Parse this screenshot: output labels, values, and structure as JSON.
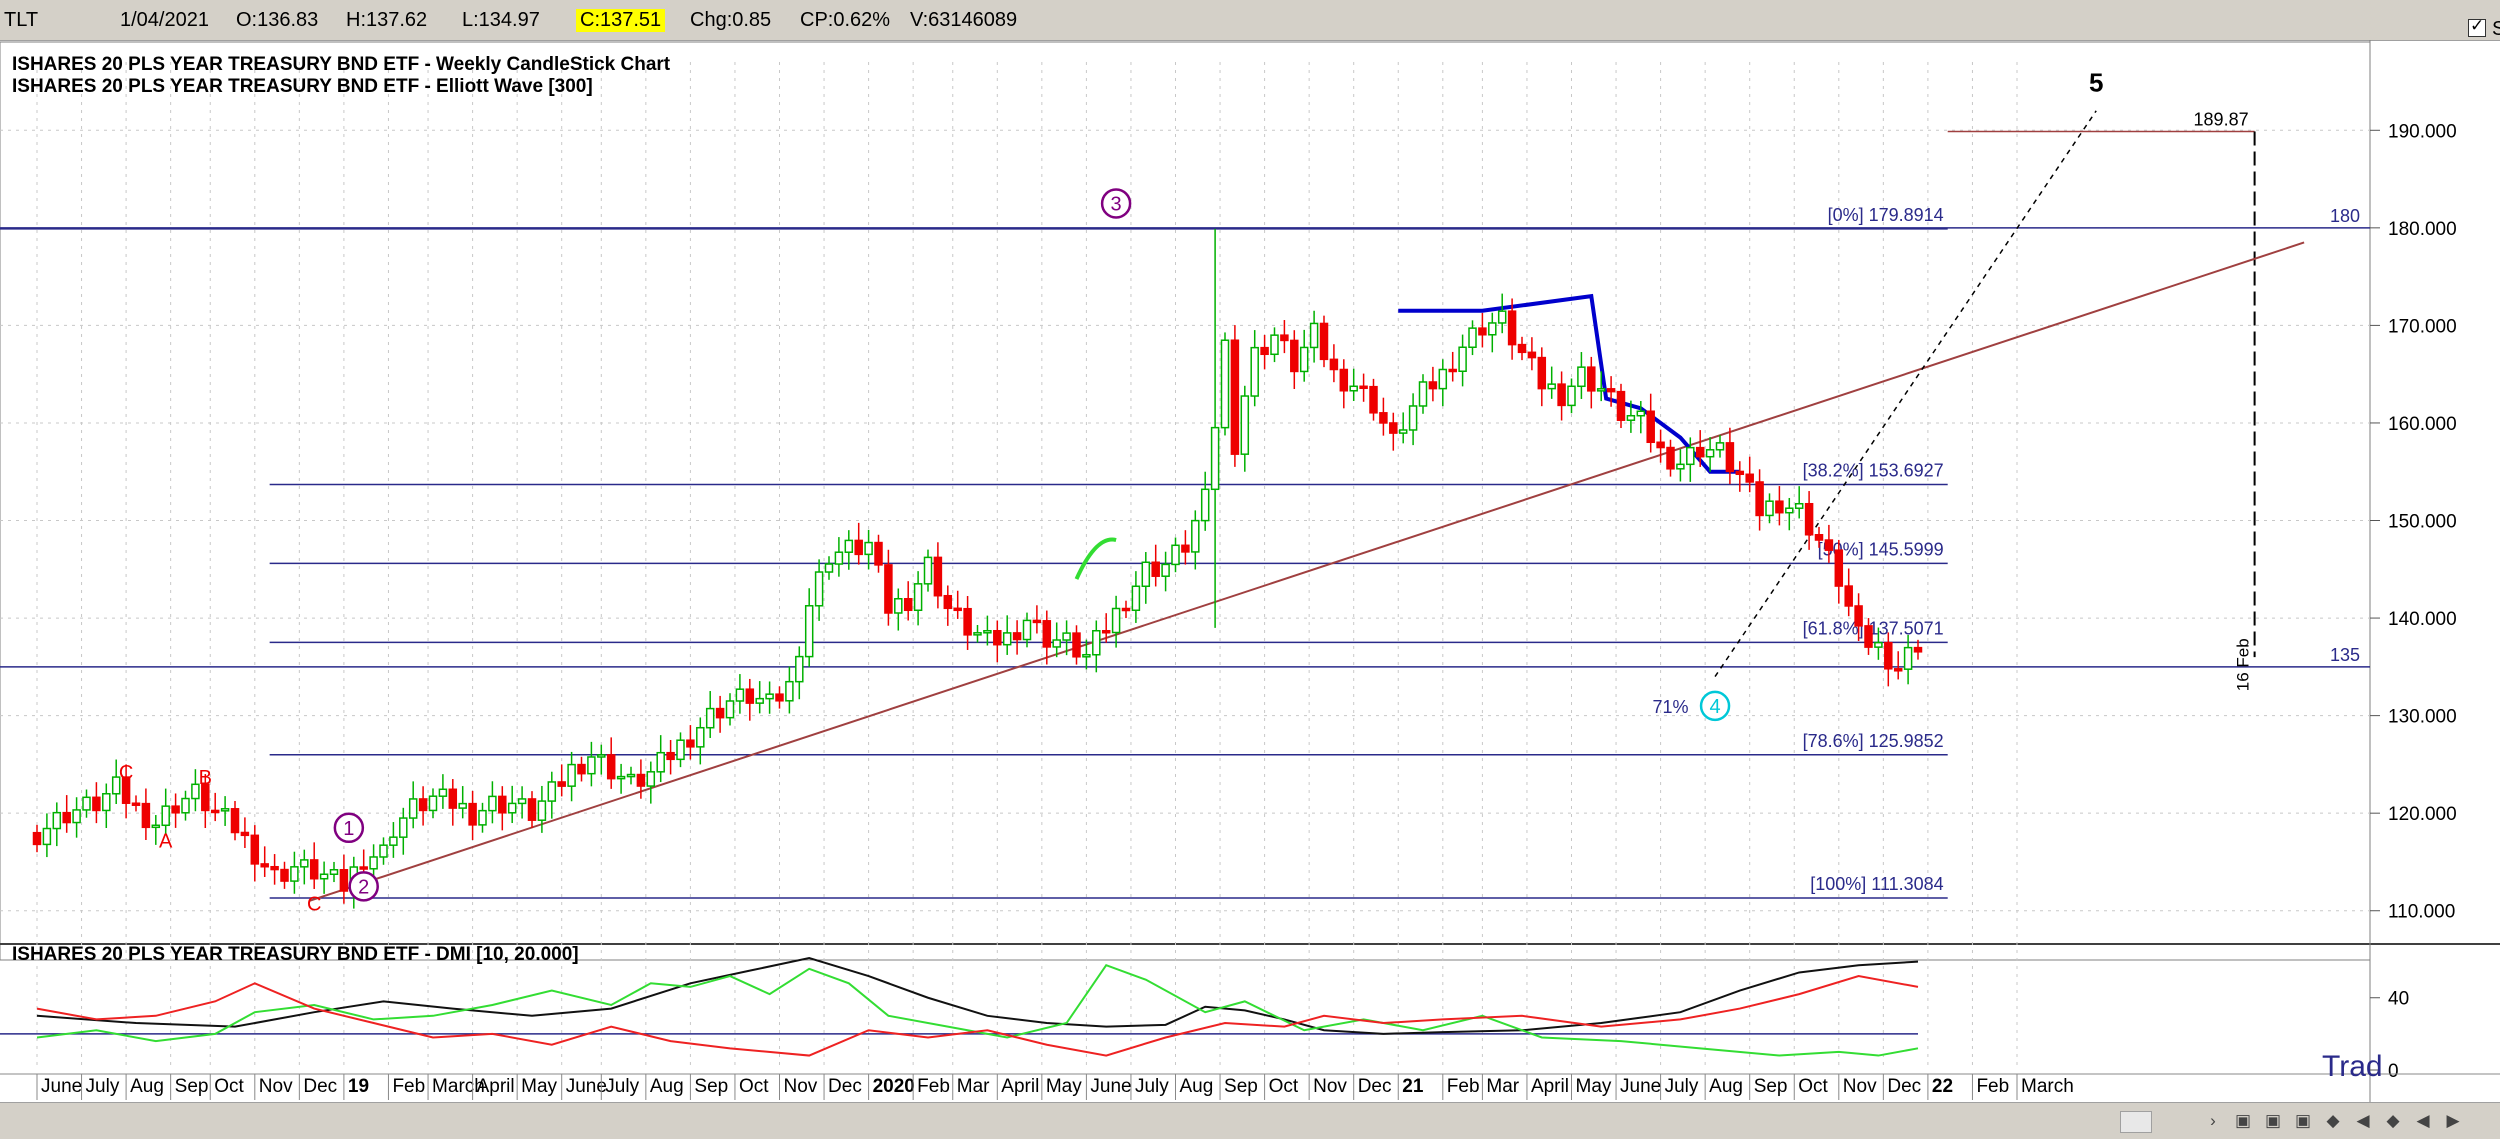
{
  "infobar": {
    "symbol": "TLT",
    "date": "1/04/2021",
    "open": "O:136.83",
    "high": "H:137.62",
    "low": "L:134.97",
    "close": "C:137.51",
    "change": "Chg:0.85",
    "change_pct": "CP:0.62%",
    "volume": "V:63146089",
    "show_last_label": "Show Last",
    "show_last_checked": true
  },
  "colors": {
    "bull": "#00b000",
    "bear": "#ee0000",
    "fib_line": "#2a2a8a",
    "trendline": "#a04040",
    "projection": "#0000cc",
    "wave_purple": "#800080",
    "wave_cyan": "#00c8d8",
    "dmi_plus": "#33dd33",
    "dmi_minus": "#ee2222",
    "adx": "#111111",
    "watermark": "#2a2a8a"
  },
  "watermark": "Trad",
  "chart_data": [
    {
      "type": "candlestick",
      "title": "ISHARES 20 PLS YEAR TREASURY BND ETF - Weekly CandleStick Chart",
      "subtitle": "ISHARES 20 PLS YEAR TREASURY BND ETF - Elliott Wave [300]",
      "ylim": [
        107,
        197
      ],
      "yticks": [
        110,
        120,
        130,
        140,
        150,
        160,
        170,
        180,
        190
      ],
      "ytick_labels": [
        "110.000",
        "120.000",
        "130.000",
        "140.000",
        "150.000",
        "160.000",
        "170.000",
        "180.000",
        "190.000"
      ],
      "grid": true,
      "x_range_weeks": [
        0,
        245
      ],
      "x_labels": [
        {
          "w": 0,
          "label": "June"
        },
        {
          "w": 4.5,
          "label": "July"
        },
        {
          "w": 9,
          "label": "Aug"
        },
        {
          "w": 13.5,
          "label": "Sep"
        },
        {
          "w": 17.5,
          "label": "Oct"
        },
        {
          "w": 22,
          "label": "Nov"
        },
        {
          "w": 26.5,
          "label": "Dec"
        },
        {
          "w": 31,
          "label": "19"
        },
        {
          "w": 35.5,
          "label": "Feb"
        },
        {
          "w": 39.5,
          "label": "March"
        },
        {
          "w": 44,
          "label": "April"
        },
        {
          "w": 48.5,
          "label": "May"
        },
        {
          "w": 53,
          "label": "June"
        },
        {
          "w": 57,
          "label": "July"
        },
        {
          "w": 61.5,
          "label": "Aug"
        },
        {
          "w": 66,
          "label": "Sep"
        },
        {
          "w": 70.5,
          "label": "Oct"
        },
        {
          "w": 75,
          "label": "Nov"
        },
        {
          "w": 79.5,
          "label": "Dec"
        },
        {
          "w": 84,
          "label": "2020"
        },
        {
          "w": 88.5,
          "label": "Feb"
        },
        {
          "w": 92.5,
          "label": "Mar"
        },
        {
          "w": 97,
          "label": "April"
        },
        {
          "w": 101.5,
          "label": "May"
        },
        {
          "w": 106,
          "label": "June"
        },
        {
          "w": 110.5,
          "label": "July"
        },
        {
          "w": 115,
          "label": "Aug"
        },
        {
          "w": 119.5,
          "label": "Sep"
        },
        {
          "w": 124,
          "label": "Oct"
        },
        {
          "w": 128.5,
          "label": "Nov"
        },
        {
          "w": 133,
          "label": "Dec"
        },
        {
          "w": 137.5,
          "label": "21"
        },
        {
          "w": 142,
          "label": "Feb"
        },
        {
          "w": 146,
          "label": "Mar"
        },
        {
          "w": 150.5,
          "label": "April"
        },
        {
          "w": 155,
          "label": "May"
        },
        {
          "w": 159.5,
          "label": "June"
        },
        {
          "w": 164,
          "label": "July"
        },
        {
          "w": 168.5,
          "label": "Aug"
        },
        {
          "w": 173,
          "label": "Sep"
        },
        {
          "w": 177.5,
          "label": "Oct"
        },
        {
          "w": 182,
          "label": "Nov"
        },
        {
          "w": 186.5,
          "label": "Dec"
        },
        {
          "w": 191,
          "label": "22"
        },
        {
          "w": 195.5,
          "label": "Feb"
        },
        {
          "w": 200,
          "label": "March"
        }
      ],
      "close_path": [
        [
          0,
          118
        ],
        [
          3,
          120
        ],
        [
          6,
          121
        ],
        [
          8,
          122.5
        ],
        [
          10,
          120.5
        ],
        [
          12,
          119
        ],
        [
          14,
          121
        ],
        [
          16,
          122
        ],
        [
          18,
          120
        ],
        [
          20,
          118.5
        ],
        [
          22,
          116
        ],
        [
          24,
          113.5
        ],
        [
          26,
          114.5
        ],
        [
          28,
          114
        ],
        [
          30,
          113
        ],
        [
          31,
          112.5
        ],
        [
          32,
          114
        ],
        [
          33,
          115.5
        ],
        [
          35,
          116
        ],
        [
          36,
          118.5
        ],
        [
          38,
          120.5
        ],
        [
          40,
          121.5
        ],
        [
          42,
          121
        ],
        [
          44,
          120
        ],
        [
          46,
          121
        ],
        [
          48,
          121
        ],
        [
          50,
          120
        ],
        [
          52,
          122
        ],
        [
          54,
          124.5
        ],
        [
          56,
          126
        ],
        [
          58,
          124.5
        ],
        [
          60,
          123
        ],
        [
          62,
          124
        ],
        [
          64,
          126
        ],
        [
          66,
          128
        ],
        [
          68,
          130
        ],
        [
          70,
          131.5
        ],
        [
          72,
          132
        ],
        [
          74,
          131
        ],
        [
          76,
          133
        ],
        [
          78,
          141.5
        ],
        [
          80,
          146.5
        ],
        [
          82,
          147
        ],
        [
          84,
          147.5
        ],
        [
          86,
          141
        ],
        [
          88,
          142
        ],
        [
          90,
          145.5
        ],
        [
          92,
          141
        ],
        [
          94,
          139
        ],
        [
          96,
          137.5
        ],
        [
          98,
          138
        ],
        [
          100,
          140
        ],
        [
          102,
          138
        ],
        [
          104,
          137.5
        ],
        [
          106,
          136
        ],
        [
          108,
          139
        ],
        [
          110,
          142
        ],
        [
          112,
          145
        ],
        [
          114,
          145.5
        ],
        [
          116,
          147.5
        ],
        [
          118,
          152
        ],
        [
          120,
          168
        ],
        [
          121,
          158
        ],
        [
          122,
          163
        ],
        [
          123,
          167
        ],
        [
          125,
          169
        ],
        [
          127,
          166
        ],
        [
          129,
          169
        ],
        [
          131,
          165
        ],
        [
          133,
          164
        ],
        [
          135,
          162
        ],
        [
          137,
          158
        ],
        [
          138,
          160
        ],
        [
          140,
          163
        ],
        [
          142,
          165
        ],
        [
          144,
          168
        ],
        [
          146,
          170
        ],
        [
          148,
          170.5
        ],
        [
          150,
          167
        ],
        [
          152,
          164
        ],
        [
          154,
          163
        ],
        [
          156,
          165
        ],
        [
          158,
          163.5
        ],
        [
          160,
          161
        ],
        [
          162,
          160
        ],
        [
          164,
          157
        ],
        [
          166,
          156
        ],
        [
          168,
          157.5
        ],
        [
          170,
          157
        ],
        [
          172,
          154.5
        ],
        [
          174,
          151
        ],
        [
          176,
          152
        ],
        [
          178,
          151
        ],
        [
          180,
          148
        ],
        [
          182,
          144
        ],
        [
          184,
          138
        ],
        [
          186,
          137
        ],
        [
          188,
          135
        ],
        [
          190,
          137.5
        ]
      ],
      "fib_levels": [
        {
          "label": "[0%] 179.8914",
          "value": 179.8914,
          "full_width": true
        },
        {
          "label": "[38.2%] 153.6927",
          "value": 153.6927
        },
        {
          "label": "[50%] 145.5999",
          "value": 145.5999
        },
        {
          "label": "[61.8%] 137.5071",
          "value": 137.5071
        },
        {
          "label": "[78.6%] 125.9852",
          "value": 125.9852
        },
        {
          "label": "[100%] 111.3084",
          "value": 111.3084
        }
      ],
      "horizontal_lines": [
        {
          "label": "180",
          "value": 180
        },
        {
          "label": "135",
          "value": 135
        }
      ],
      "target": {
        "label": "189.87",
        "value": 189.87,
        "w_start": 193,
        "w_end": 224
      },
      "vertical_marker": {
        "label": "16 Feb",
        "w": 224
      },
      "trendline": {
        "from": [
          27.5,
          111
        ],
        "to": [
          229,
          178.5
        ]
      },
      "projection_line": [
        [
          137.5,
          171.5
        ],
        [
          146,
          171.5
        ],
        [
          157,
          173
        ],
        [
          158.5,
          162.5
        ],
        [
          162,
          161.5
        ],
        [
          166,
          158.5
        ],
        [
          169,
          155
        ],
        [
          172,
          155
        ]
      ],
      "wave_labels": [
        {
          "label": "C",
          "w": 9,
          "v": 123.5,
          "style": "red"
        },
        {
          "label": "A",
          "w": 13,
          "v": 116.5,
          "style": "red"
        },
        {
          "label": "B",
          "w": 17,
          "v": 123,
          "style": "red"
        },
        {
          "label": "C",
          "w": 28,
          "v": 110,
          "style": "red"
        },
        {
          "label": "1",
          "w": 31.5,
          "v": 118.5,
          "style": "circle-purple"
        },
        {
          "label": "2",
          "w": 33,
          "v": 112.5,
          "style": "circle-purple"
        },
        {
          "label": "3",
          "w": 109,
          "v": 182.5,
          "style": "circle-purple"
        },
        {
          "label": "4",
          "w": 169.5,
          "v": 131,
          "style": "circle-cyan"
        },
        {
          "label": "5",
          "w": 208,
          "v": 194,
          "style": "bold-black"
        },
        {
          "label": "71%",
          "w": 165,
          "v": 131,
          "style": "small-blue"
        }
      ]
    },
    {
      "type": "line",
      "title": "ISHARES 20 PLS YEAR TREASURY BND ETF - DMI [10, 20.000]",
      "ylim": [
        0,
        62
      ],
      "yticks": [
        0,
        40
      ],
      "ytick_labels": [
        "0",
        "40"
      ],
      "reference_line": 20,
      "series": [
        {
          "role": "adx",
          "values": [
            [
              0,
              30
            ],
            [
              10,
              26
            ],
            [
              20,
              24
            ],
            [
              28,
              32
            ],
            [
              35,
              38
            ],
            [
              42,
              34
            ],
            [
              50,
              30
            ],
            [
              58,
              34
            ],
            [
              66,
              48
            ],
            [
              72,
              55
            ],
            [
              78,
              62
            ],
            [
              84,
              52
            ],
            [
              90,
              40
            ],
            [
              96,
              30
            ],
            [
              102,
              26
            ],
            [
              108,
              24
            ],
            [
              114,
              25
            ],
            [
              118,
              35
            ],
            [
              122,
              33
            ],
            [
              126,
              28
            ],
            [
              130,
              22
            ],
            [
              136,
              20
            ],
            [
              142,
              21
            ],
            [
              150,
              22
            ],
            [
              158,
              26
            ],
            [
              166,
              32
            ],
            [
              172,
              44
            ],
            [
              178,
              54
            ],
            [
              184,
              58
            ],
            [
              190,
              60
            ]
          ]
        },
        {
          "role": "plus",
          "values": [
            [
              0,
              18
            ],
            [
              6,
              22
            ],
            [
              12,
              16
            ],
            [
              18,
              20
            ],
            [
              22,
              32
            ],
            [
              28,
              36
            ],
            [
              34,
              28
            ],
            [
              40,
              30
            ],
            [
              46,
              36
            ],
            [
              52,
              44
            ],
            [
              58,
              36
            ],
            [
              62,
              48
            ],
            [
              66,
              46
            ],
            [
              70,
              52
            ],
            [
              74,
              42
            ],
            [
              78,
              56
            ],
            [
              82,
              48
            ],
            [
              86,
              30
            ],
            [
              92,
              24
            ],
            [
              98,
              18
            ],
            [
              104,
              26
            ],
            [
              108,
              58
            ],
            [
              112,
              50
            ],
            [
              118,
              32
            ],
            [
              122,
              38
            ],
            [
              128,
              22
            ],
            [
              134,
              28
            ],
            [
              140,
              22
            ],
            [
              146,
              30
            ],
            [
              152,
              18
            ],
            [
              160,
              16
            ],
            [
              168,
              12
            ],
            [
              176,
              8
            ],
            [
              182,
              10
            ],
            [
              186,
              8
            ],
            [
              190,
              12
            ]
          ]
        },
        {
          "role": "minus",
          "values": [
            [
              0,
              34
            ],
            [
              6,
              28
            ],
            [
              12,
              30
            ],
            [
              18,
              38
            ],
            [
              22,
              48
            ],
            [
              28,
              34
            ],
            [
              34,
              26
            ],
            [
              40,
              18
            ],
            [
              46,
              20
            ],
            [
              52,
              14
            ],
            [
              58,
              24
            ],
            [
              64,
              16
            ],
            [
              70,
              12
            ],
            [
              78,
              8
            ],
            [
              84,
              22
            ],
            [
              90,
              18
            ],
            [
              96,
              22
            ],
            [
              102,
              14
            ],
            [
              108,
              8
            ],
            [
              114,
              18
            ],
            [
              120,
              26
            ],
            [
              126,
              24
            ],
            [
              130,
              30
            ],
            [
              136,
              26
            ],
            [
              142,
              28
            ],
            [
              150,
              30
            ],
            [
              158,
              24
            ],
            [
              166,
              28
            ],
            [
              172,
              34
            ],
            [
              178,
              42
            ],
            [
              184,
              52
            ],
            [
              190,
              46
            ]
          ]
        }
      ]
    }
  ]
}
